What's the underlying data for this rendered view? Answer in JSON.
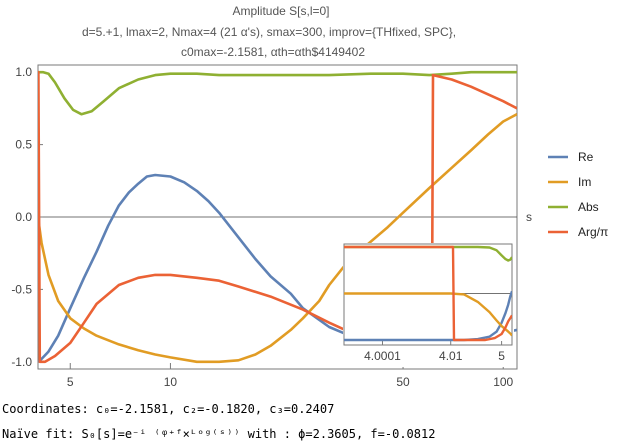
{
  "header": {
    "title": "Amplitude S[s,l=0]",
    "subtitle_line1": "d=5.+1, lmax=2, Nmax=4 (21 α's), smax=300, improv={THfixed, SPC},",
    "subtitle_line2": "c0max=-2.1581, αth=αth$4149402"
  },
  "footer": {
    "coordinates": "Coordinates: c₀=-2.1581, c₂=-0.1820, c₃=0.2407",
    "naive_fit": "Naïve fit: S₀[s]=e⁻ⁱ ⁽ᵠ⁺ᶠ×ᴸᵒᵍ⁽ˢ⁾⁾ with : ϕ=2.3605, f=-0.0812"
  },
  "colors": {
    "Re": "#5E81B5",
    "Im": "#E19C24",
    "Abs": "#8FB032",
    "Arg": "#EB6235",
    "axis": "#7a7a7a",
    "zero_line": "#444444"
  },
  "chart_data": [
    {
      "type": "line",
      "title": "Amplitude S[s,l=0]",
      "xlabel": "s",
      "ylabel": "",
      "x_scale": "log",
      "xlim": [
        4,
        110
      ],
      "ylim": [
        -1.05,
        1.05
      ],
      "x_ticks": [
        5,
        10,
        50,
        100
      ],
      "y_ticks": [
        1.0,
        0.5,
        0.0,
        -0.5,
        -1.0
      ],
      "y_tick_labels": [
        "1.0",
        "0.5",
        "0.0",
        "-0.5",
        "-1.0"
      ],
      "legend": {
        "placement": "right",
        "entries": [
          "Re",
          "Im",
          "Abs",
          "Arg/π"
        ]
      },
      "series": [
        {
          "name": "Re",
          "x": [
            4.0,
            4.1,
            4.3,
            4.6,
            5.0,
            5.5,
            6.0,
            6.5,
            7.0,
            7.5,
            8.0,
            8.5,
            9.0,
            10,
            11,
            12,
            13,
            14,
            16,
            18,
            20,
            23,
            25,
            28,
            30,
            33,
            37,
            45,
            55,
            65,
            80,
            100,
            110
          ],
          "y": [
            -1.0,
            -0.98,
            -0.93,
            -0.82,
            -0.63,
            -0.42,
            -0.24,
            -0.06,
            0.08,
            0.17,
            0.23,
            0.28,
            0.29,
            0.28,
            0.24,
            0.18,
            0.11,
            0.03,
            -0.14,
            -0.29,
            -0.41,
            -0.53,
            -0.63,
            -0.71,
            -0.76,
            -0.8,
            -0.82,
            -0.84,
            -0.85,
            -0.84,
            -0.82,
            -0.8,
            -0.78
          ]
        },
        {
          "name": "Im",
          "x": [
            4.0,
            4.1,
            4.3,
            4.6,
            5.0,
            5.5,
            6.0,
            7.0,
            8.0,
            9.0,
            10,
            12,
            14,
            16,
            18,
            20,
            23,
            25,
            28,
            30,
            33,
            36,
            40,
            45,
            50,
            60,
            70,
            80,
            90,
            100,
            110
          ],
          "y": [
            0.0,
            -0.18,
            -0.4,
            -0.58,
            -0.7,
            -0.77,
            -0.82,
            -0.88,
            -0.92,
            -0.95,
            -0.97,
            -1.0,
            -1.0,
            -0.99,
            -0.95,
            -0.89,
            -0.78,
            -0.7,
            -0.58,
            -0.47,
            -0.35,
            -0.26,
            -0.17,
            -0.07,
            0.03,
            0.2,
            0.34,
            0.46,
            0.57,
            0.66,
            0.71
          ]
        },
        {
          "name": "Abs",
          "x": [
            4.0,
            4.15,
            4.3,
            4.5,
            4.8,
            5.1,
            5.4,
            5.8,
            6.3,
            7.0,
            8.0,
            9.0,
            10,
            12,
            14,
            16,
            20,
            25,
            30,
            40,
            50,
            60,
            70,
            80,
            100,
            110
          ],
          "y": [
            1.0,
            1.0,
            0.99,
            0.93,
            0.82,
            0.74,
            0.71,
            0.73,
            0.8,
            0.89,
            0.95,
            0.98,
            0.99,
            0.99,
            0.98,
            0.98,
            0.98,
            0.98,
            0.98,
            0.99,
            0.99,
            0.98,
            0.99,
            1.0,
            1.0,
            1.0
          ]
        },
        {
          "name": "Arg/π",
          "x": [
            4.0,
            4.0001,
            4.01,
            4.05,
            4.2,
            4.5,
            5.0,
            5.5,
            6.0,
            7.0,
            8.0,
            9.0,
            10,
            12,
            14,
            16,
            20,
            25,
            30,
            35,
            40,
            50,
            60,
            61.0,
            61.5,
            70,
            80,
            100,
            110
          ],
          "y": [
            0.0,
            1.0,
            1.0,
            -1.0,
            -1.0,
            -0.96,
            -0.87,
            -0.73,
            -0.6,
            -0.47,
            -0.42,
            -0.4,
            -0.4,
            -0.42,
            -0.44,
            -0.48,
            -0.55,
            -0.64,
            -0.73,
            -0.8,
            -0.83,
            -0.9,
            -0.98,
            -1.0,
            0.98,
            0.95,
            0.9,
            0.8,
            0.75
          ]
        }
      ]
    },
    {
      "type": "line",
      "title": "",
      "xlabel": "",
      "ylabel": "",
      "x_scale": "log-log",
      "x_ticks": [
        4.0001,
        4.01,
        5
      ],
      "x_tick_labels": [
        "4.0001",
        "4.01",
        "5"
      ],
      "legend": {
        "placement": "none",
        "entries": []
      },
      "series": [
        {
          "name": "Abs",
          "x": [
            4.00001,
            4.0003,
            4.001,
            4.003,
            4.01,
            4.03,
            4.1,
            4.3,
            4.6,
            5.0,
            5.5,
            6.0,
            6.5,
            7.0
          ],
          "y": [
            1.0,
            1.0,
            1.0,
            1.0,
            1.0,
            1.0,
            1.0,
            0.99,
            0.93,
            0.82,
            0.74,
            0.71,
            0.73,
            0.78
          ]
        },
        {
          "name": "Re",
          "x": [
            4.00001,
            4.0003,
            4.001,
            4.003,
            4.01,
            4.03,
            4.1,
            4.3,
            4.6,
            5.0,
            5.5,
            6.0,
            6.5,
            7.0
          ],
          "y": [
            -1.0,
            -1.0,
            -1.0,
            -1.0,
            -1.0,
            -1.0,
            -0.98,
            -0.93,
            -0.82,
            -0.63,
            -0.42,
            -0.24,
            -0.06,
            0.05
          ]
        },
        {
          "name": "Im",
          "x": [
            4.00001,
            4.0003,
            4.001,
            4.003,
            4.01,
            4.03,
            4.1,
            4.3,
            4.6,
            5.0,
            5.5,
            6.0,
            6.5,
            7.0
          ],
          "y": [
            0.0,
            0.0,
            0.0,
            0.0,
            0.0,
            -0.02,
            -0.18,
            -0.4,
            -0.58,
            -0.7,
            -0.77,
            -0.82,
            -0.86,
            -0.9
          ]
        },
        {
          "name": "Arg/π",
          "x": [
            4.00001,
            4.0003,
            4.001,
            4.003,
            4.01,
            4.012,
            4.013,
            4.05,
            4.2,
            4.5,
            5.0,
            5.5,
            6.0,
            7.0
          ],
          "y": [
            1.0,
            1.0,
            1.0,
            1.0,
            1.0,
            1.0,
            -1.0,
            -1.0,
            -1.0,
            -0.96,
            -0.87,
            -0.73,
            -0.6,
            -0.47
          ]
        }
      ]
    }
  ]
}
